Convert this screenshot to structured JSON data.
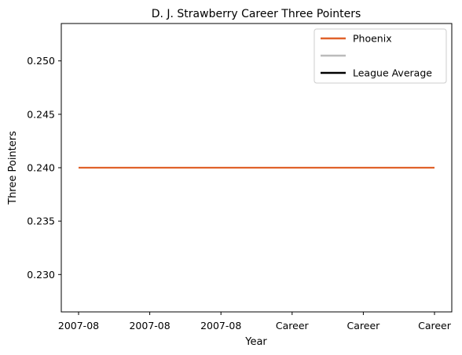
{
  "chart_data": {
    "type": "line",
    "title": "D. J. Strawberry Career Three Pointers",
    "xlabel": "Year",
    "ylabel": "Three Pointers",
    "x": [
      "2007-08",
      "2007-08",
      "2007-08",
      "Career",
      "Career",
      "Career"
    ],
    "series": [
      {
        "name": "Phoenix",
        "color": "#e0622a",
        "values": [
          0.24,
          0.24,
          0.24,
          0.24,
          0.24,
          0.24
        ]
      }
    ],
    "legend": {
      "position": "top-right",
      "entries": [
        {
          "label": "Phoenix",
          "color": "#e0622a"
        },
        {
          "label": "",
          "color": "#bbbbbb"
        },
        {
          "label": "League Average",
          "color": "#000000"
        }
      ]
    },
    "ylim": [
      0.2265,
      0.2535
    ],
    "yticks": [
      0.23,
      0.235,
      0.24,
      0.245,
      0.25
    ],
    "ytick_labels": [
      "0.230",
      "0.235",
      "0.240",
      "0.245",
      "0.250"
    ],
    "grid": false
  }
}
